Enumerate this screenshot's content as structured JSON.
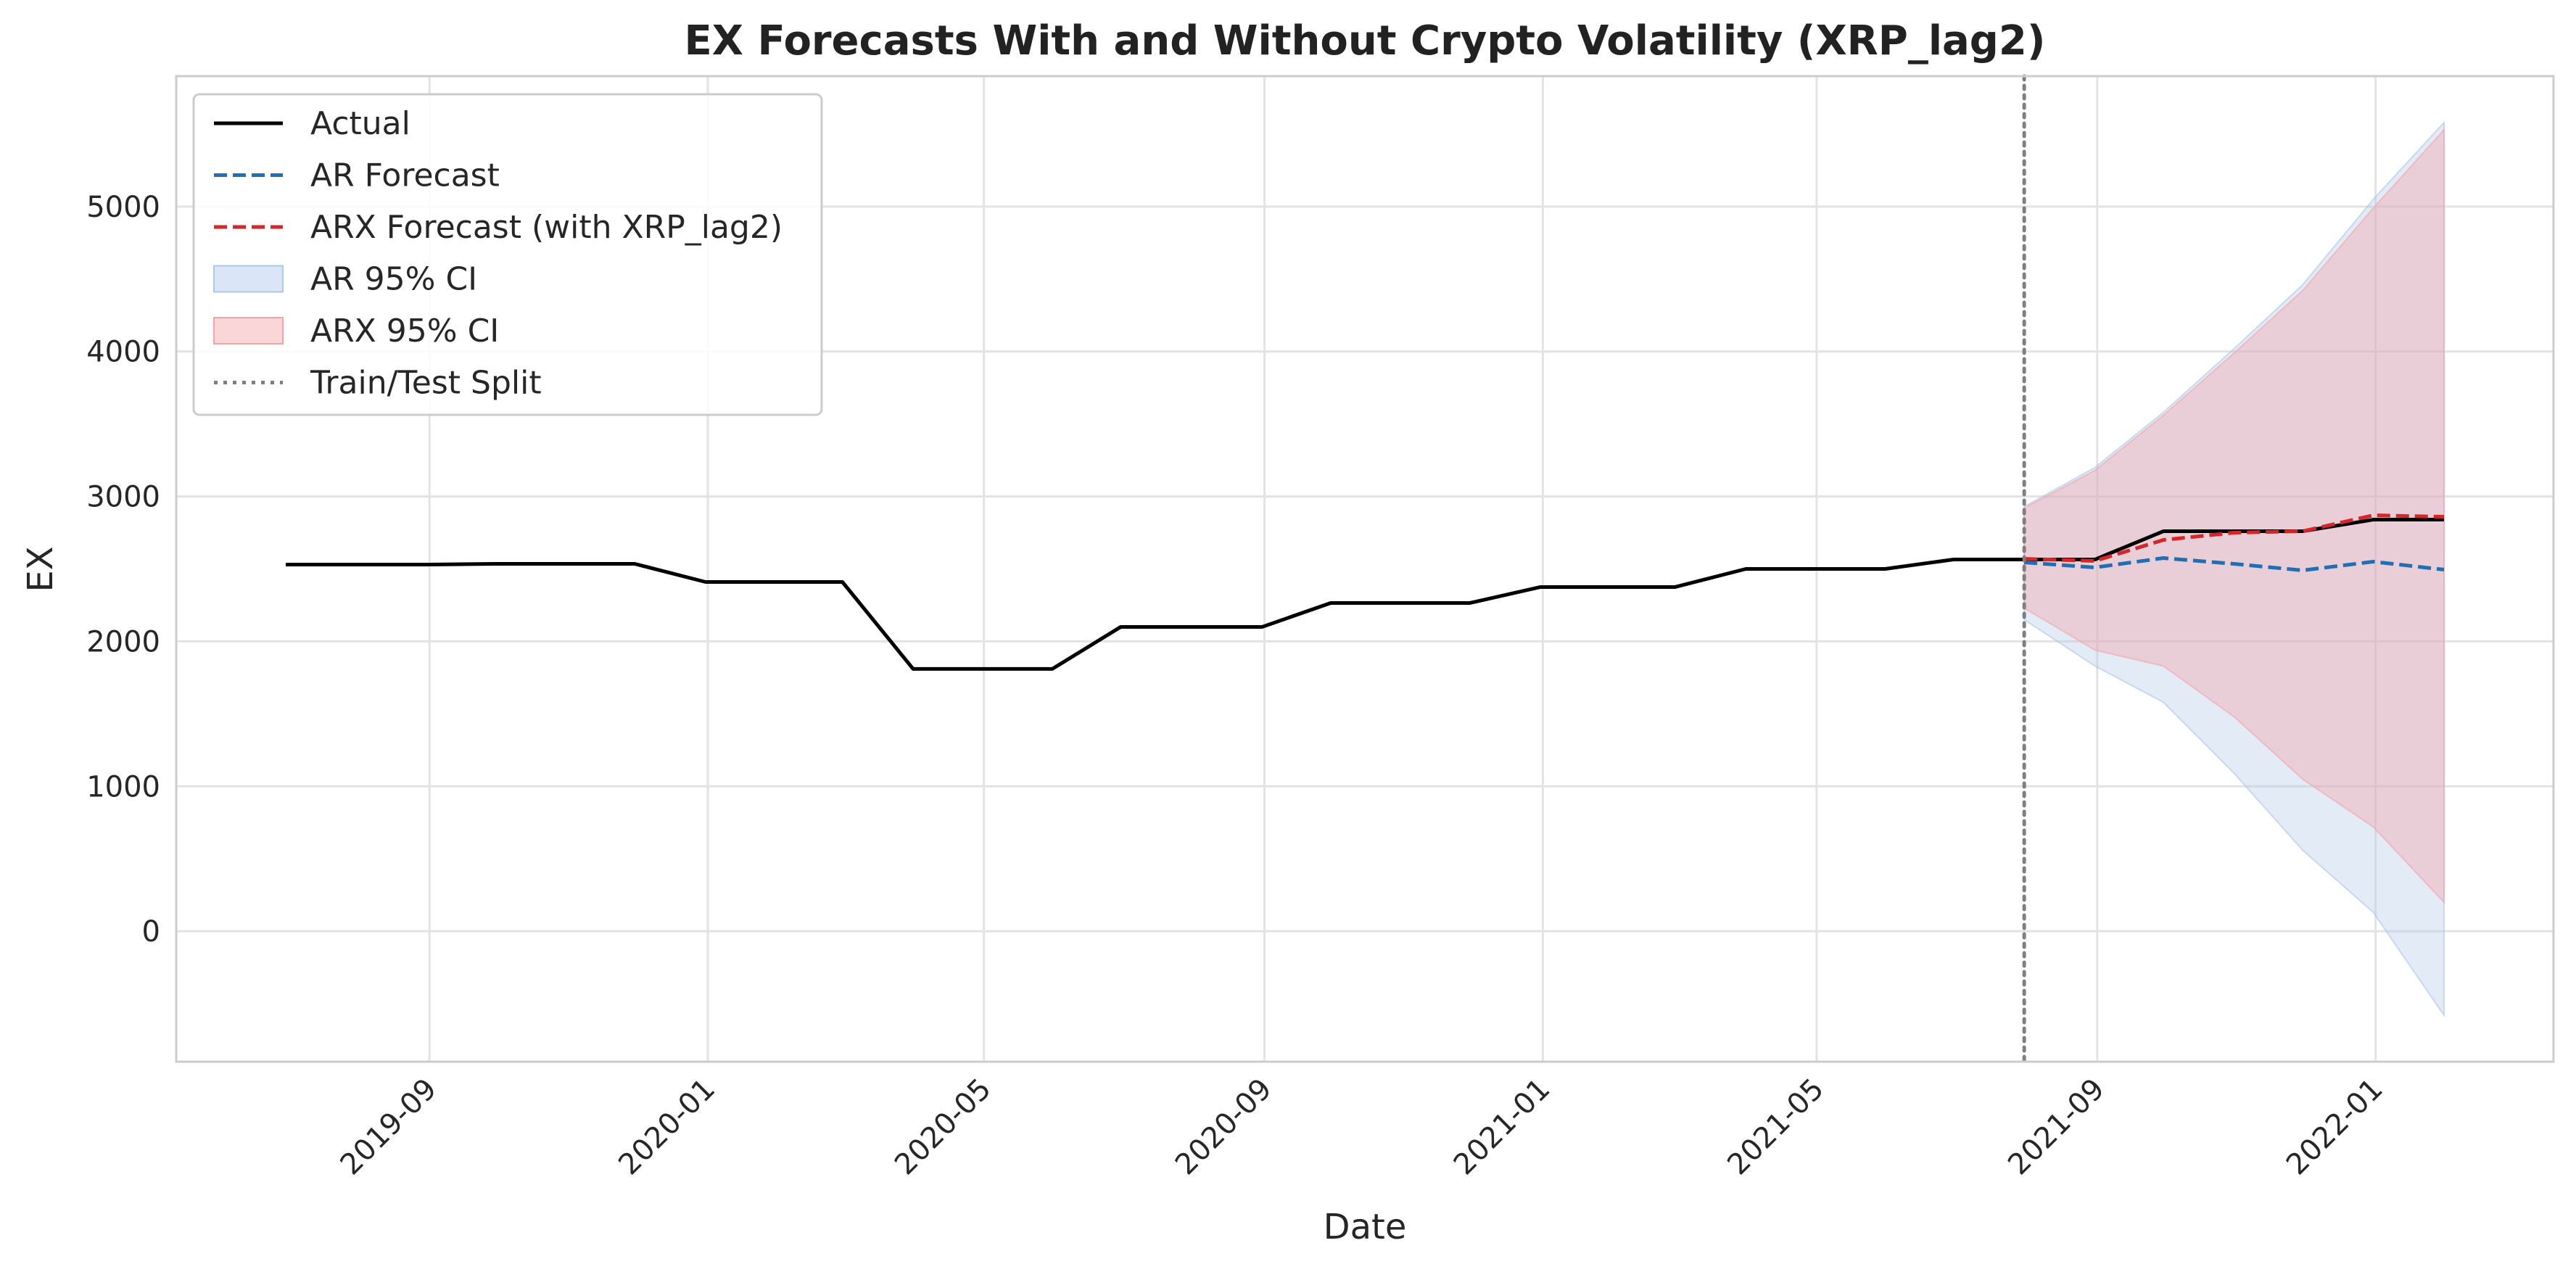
{
  "chart_data": {
    "type": "line",
    "title": "EX Forecasts With and Without Crypto Volatility (XRP_lag2)",
    "xlabel": "Date",
    "ylabel": "EX",
    "x_ticks": [
      "2019-09",
      "2020-01",
      "2020-05",
      "2020-09",
      "2021-01",
      "2021-05",
      "2021-09",
      "2022-01"
    ],
    "y_ticks": [
      0,
      1000,
      2000,
      3000,
      4000,
      5000
    ],
    "ylim": [
      -900,
      5900
    ],
    "xlim": [
      "2019-05-13",
      "2022-03-20"
    ],
    "grid": true,
    "legend_position": "top-left",
    "split_date": "2021-07-31",
    "series": [
      {
        "name": "Actual",
        "style": "solid",
        "color": "#000000",
        "x": [
          "2019-06-30",
          "2019-07-31",
          "2019-08-31",
          "2019-09-30",
          "2019-10-31",
          "2019-11-30",
          "2019-12-31",
          "2020-01-31",
          "2020-02-29",
          "2020-03-31",
          "2020-04-30",
          "2020-05-31",
          "2020-06-30",
          "2020-07-31",
          "2020-08-31",
          "2020-09-30",
          "2020-10-31",
          "2020-11-30",
          "2020-12-31",
          "2021-01-31",
          "2021-02-28",
          "2021-03-31",
          "2021-04-30",
          "2021-05-31",
          "2021-06-30",
          "2021-07-31",
          "2021-08-31",
          "2021-09-30",
          "2021-10-31",
          "2021-11-30",
          "2021-12-31",
          "2022-01-31"
        ],
        "y": [
          2530,
          2530,
          2530,
          2535,
          2535,
          2535,
          2410,
          2410,
          2410,
          1810,
          1810,
          1810,
          2100,
          2100,
          2100,
          2265,
          2265,
          2265,
          2375,
          2375,
          2375,
          2500,
          2500,
          2500,
          2565,
          2565,
          2565,
          2760,
          2760,
          2760,
          2840,
          2840
        ]
      },
      {
        "name": "AR Forecast",
        "style": "dashed",
        "color": "#1f6fb4",
        "x": [
          "2021-07-31",
          "2021-08-31",
          "2021-09-30",
          "2021-10-31",
          "2021-11-30",
          "2021-12-31",
          "2022-01-31"
        ],
        "y": [
          2545,
          2510,
          2575,
          2535,
          2490,
          2550,
          2495
        ]
      },
      {
        "name": "ARX Forecast (with XRP_lag2)",
        "style": "dashed",
        "color": "#d62728",
        "x": [
          "2021-07-31",
          "2021-08-31",
          "2021-09-30",
          "2021-10-31",
          "2021-11-30",
          "2021-12-31",
          "2022-01-31"
        ],
        "y": [
          2570,
          2555,
          2700,
          2750,
          2760,
          2870,
          2860
        ]
      }
    ],
    "bands": [
      {
        "name": "AR 95% CI",
        "color": "#aec7e8",
        "x": [
          "2021-07-31",
          "2021-08-31",
          "2021-09-30",
          "2021-10-31",
          "2021-11-30",
          "2021-12-31",
          "2022-01-31"
        ],
        "lower": [
          2150,
          1830,
          1580,
          1090,
          560,
          130,
          -580
        ],
        "upper": [
          2930,
          3200,
          3580,
          4020,
          4460,
          5050,
          5580
        ]
      },
      {
        "name": "ARX 95% CI",
        "color": "#f4a3a8",
        "x": [
          "2021-07-31",
          "2021-08-31",
          "2021-09-30",
          "2021-10-31",
          "2021-11-30",
          "2021-12-31",
          "2022-01-31"
        ],
        "lower": [
          2230,
          1940,
          1830,
          1480,
          1050,
          720,
          200
        ],
        "upper": [
          2920,
          3180,
          3560,
          3990,
          4420,
          4990,
          5530
        ]
      }
    ],
    "vline": {
      "name": "Train/Test Split",
      "style": "dotted",
      "color": "#7f7f7f"
    },
    "legend": [
      "Actual",
      "AR Forecast",
      "ARX Forecast (with XRP_lag2)",
      "AR 95% CI",
      "ARX 95% CI",
      "Train/Test Split"
    ]
  }
}
